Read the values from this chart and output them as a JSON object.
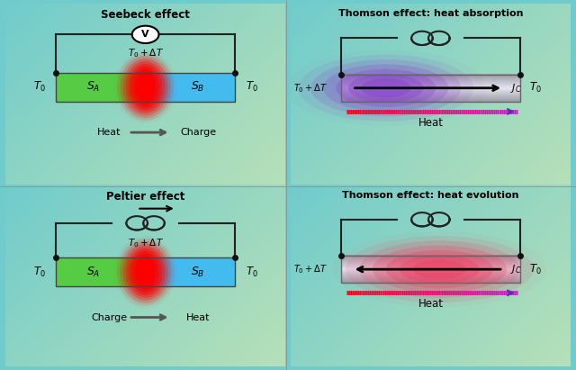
{
  "titles": [
    "Seebeck effect",
    "Thomson effect: heat absorption",
    "Peltier effect",
    "Thomson effect: heat evolution"
  ],
  "bg_teal": [
    0.44,
    0.8,
    0.8
  ],
  "bg_green": [
    0.72,
    0.88,
    0.72
  ],
  "bar_green": "#55cc44",
  "bar_blue": "#44bbee",
  "bar_silver_lo": 0.6,
  "bar_silver_hi": 0.9,
  "wire_color": "#222222",
  "dot_color": "#111111",
  "arrow_gray": "#555555"
}
